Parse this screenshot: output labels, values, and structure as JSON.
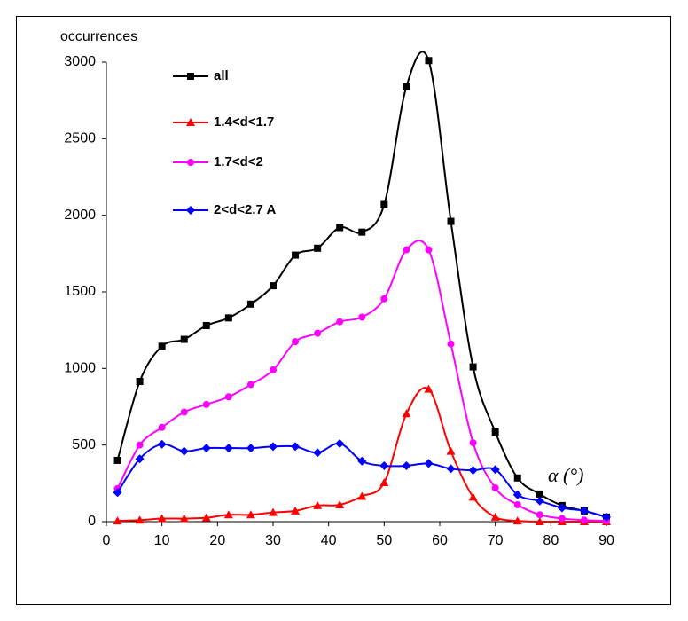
{
  "chart_data": {
    "type": "line",
    "y_label": "occurrences",
    "annotation": "α (°)",
    "x": [
      2,
      6,
      10,
      14,
      18,
      22,
      26,
      30,
      34,
      38,
      42,
      46,
      50,
      54,
      58,
      62,
      66,
      70,
      74,
      78,
      82,
      86,
      90
    ],
    "series": [
      {
        "name": "all",
        "color": "#000000",
        "marker": "square",
        "values": [
          400,
          915,
          1145,
          1190,
          1280,
          1330,
          1420,
          1540,
          1740,
          1785,
          1920,
          1890,
          2070,
          2840,
          3010,
          1960,
          1010,
          585,
          285,
          180,
          105,
          70,
          30
        ]
      },
      {
        "name": "1.4<d<1.7",
        "color": "#ff0000",
        "marker": "triangle",
        "values": [
          5,
          10,
          20,
          20,
          25,
          45,
          45,
          60,
          70,
          105,
          110,
          165,
          255,
          705,
          865,
          460,
          160,
          30,
          5,
          0,
          0,
          0,
          0
        ]
      },
      {
        "name": "1.7<d<2",
        "color": "#ff00ff",
        "marker": "circle",
        "values": [
          215,
          500,
          615,
          715,
          765,
          815,
          895,
          990,
          1175,
          1230,
          1305,
          1335,
          1455,
          1775,
          1775,
          1160,
          515,
          220,
          110,
          45,
          20,
          10,
          5
        ]
      },
      {
        "name": "2<d<2.7 A",
        "color": "#0000ff",
        "marker": "diamond",
        "values": [
          190,
          410,
          505,
          460,
          480,
          480,
          480,
          490,
          490,
          450,
          510,
          395,
          365,
          365,
          380,
          345,
          335,
          340,
          175,
          135,
          90,
          70,
          30
        ]
      }
    ],
    "xlim": [
      0,
      90
    ],
    "xticks": [
      0,
      10,
      20,
      30,
      40,
      50,
      60,
      70,
      80,
      90
    ],
    "ylim": [
      0,
      3000
    ],
    "yticks": [
      0,
      500,
      1000,
      1500,
      2000,
      2500,
      3000
    ],
    "legend": "upper left",
    "grid": false
  }
}
